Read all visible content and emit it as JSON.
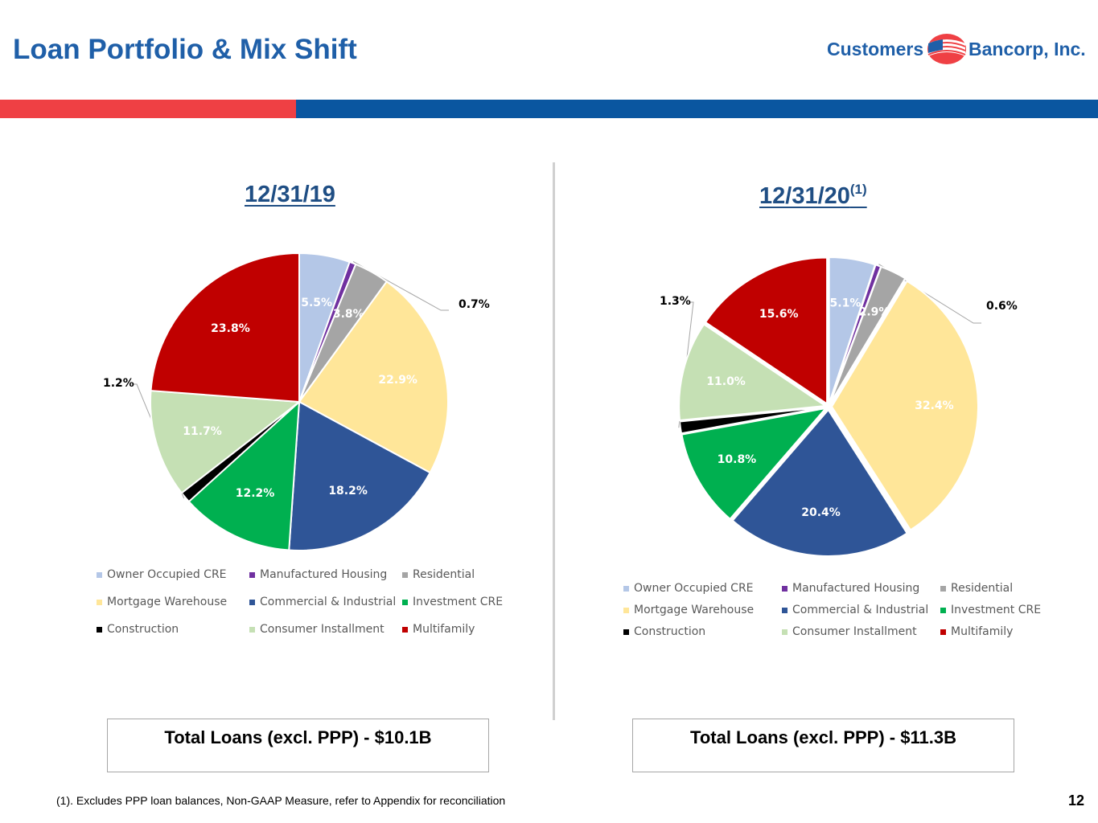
{
  "header": {
    "title": "Loan Portfolio & Mix Shift",
    "logo_left": "Customers",
    "logo_right": "Bancorp, Inc.",
    "colors": {
      "title": "#1f5fa8",
      "band_red": "#ef4044",
      "band_blue": "#0a56a0"
    }
  },
  "chart_data": [
    {
      "type": "pie",
      "title": "12/31/19",
      "title_superscript": "",
      "legend_position": "bottom",
      "slices": [
        {
          "name": "Owner Occupied CRE",
          "value": 5.5,
          "label": "5.5%",
          "color": "#b4c7e7",
          "label_color": "#ffffff"
        },
        {
          "name": "Manufactured Housing",
          "value": 0.7,
          "label": "0.7%",
          "color": "#7030a0",
          "label_color": "#000000",
          "callout": true
        },
        {
          "name": "Residential",
          "value": 3.8,
          "label": "3.8%",
          "color": "#a5a5a5",
          "label_color": "#ffffff"
        },
        {
          "name": "Mortgage Warehouse",
          "value": 22.9,
          "label": "22.9%",
          "color": "#ffe699",
          "label_color": "#ffffff"
        },
        {
          "name": "Commercial & Industrial",
          "value": 18.2,
          "label": "18.2%",
          "color": "#2f5597",
          "label_color": "#ffffff"
        },
        {
          "name": "Investment CRE",
          "value": 12.2,
          "label": "12.2%",
          "color": "#00b050",
          "label_color": "#ffffff"
        },
        {
          "name": "Construction",
          "value": 1.2,
          "label": "1.2%",
          "color": "#000000",
          "label_color": "#000000",
          "callout": true
        },
        {
          "name": "Consumer Installment",
          "value": 11.7,
          "label": "11.7%",
          "color": "#c5e0b4",
          "label_color": "#ffffff"
        },
        {
          "name": "Multifamily",
          "value": 23.8,
          "label": "23.8%",
          "color": "#c00000",
          "label_color": "#ffffff"
        }
      ]
    },
    {
      "type": "pie",
      "title": "12/31/20",
      "title_superscript": "(1)",
      "legend_position": "bottom",
      "slices": [
        {
          "name": "Owner Occupied CRE",
          "value": 5.1,
          "label": "5.1%",
          "color": "#b4c7e7",
          "label_color": "#ffffff"
        },
        {
          "name": "Manufactured Housing",
          "value": 0.6,
          "label": "0.6%",
          "color": "#7030a0",
          "label_color": "#000000",
          "callout": true
        },
        {
          "name": "Residential",
          "value": 2.9,
          "label": "2.9%",
          "color": "#a5a5a5",
          "label_color": "#ffffff"
        },
        {
          "name": "Mortgage Warehouse",
          "value": 32.4,
          "label": "32.4%",
          "color": "#ffe699",
          "label_color": "#ffffff"
        },
        {
          "name": "Commercial & Industrial",
          "value": 20.4,
          "label": "20.4%",
          "color": "#2f5597",
          "label_color": "#ffffff"
        },
        {
          "name": "Investment CRE",
          "value": 10.8,
          "label": "10.8%",
          "color": "#00b050",
          "label_color": "#ffffff"
        },
        {
          "name": "Construction",
          "value": 1.3,
          "label": "1.3%",
          "color": "#000000",
          "label_color": "#000000",
          "callout": true
        },
        {
          "name": "Consumer Installment",
          "value": 11.0,
          "label": "11.0%",
          "color": "#c5e0b4",
          "label_color": "#ffffff"
        },
        {
          "name": "Multifamily",
          "value": 15.6,
          "label": "15.6%",
          "color": "#c00000",
          "label_color": "#ffffff"
        }
      ]
    }
  ],
  "totals": {
    "left": "Total Loans (excl. PPP) - $10.1B",
    "right": "Total Loans (excl. PPP) - $11.3B"
  },
  "footer": {
    "footnote": "(1). Excludes PPP loan balances, Non-GAAP Measure, refer to Appendix for reconciliation",
    "page_number": "12"
  }
}
